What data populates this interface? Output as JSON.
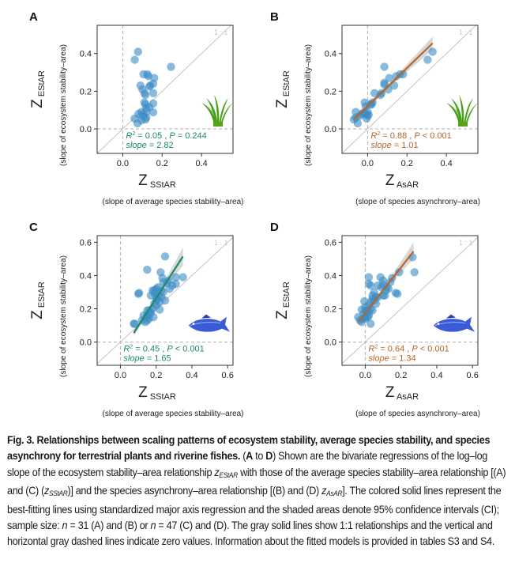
{
  "figure": {
    "number": "Fig. 3.",
    "caption_title": "Relationships between scaling patterns of ecosystem stability, average species stability, and species asynchrony for terrestrial plants and riverine fishes.",
    "caption_parts": {
      "range_open": "(",
      "range_a": "A",
      "range_to": " to ",
      "range_d": "D",
      "range_close": ")",
      "t1": " Shown are the bivariate regressions of the log–log slope of the ecosystem stability–area relationship ",
      "z1": "z",
      "z1_sub": "EStAR",
      "t2": " with those of the average species stability–area relationship [(A) and (C) (",
      "z2": "z",
      "z2_sub": "SStAR",
      "t3": ")] and the species asynchrony–area relationship [(B) and (D) ",
      "z3": "z",
      "z3_sub": "AsAR",
      "t4": "]. The colored solid lines represent the best-fitting lines using standardized major axis regression and the shaded areas denote 95% confidence intervals (CI); sample size: ",
      "n1": "n",
      "t5": " = 31 (A) and (B) or ",
      "n2": "n",
      "t6": " = 47 (C) and (D). The gray solid lines show 1:1 relationships and the vertical and horizontal gray dashed lines indicate zero values. Information about the fitted models is provided in tables S3 and S4."
    }
  },
  "colors": {
    "point": "#3a8cc4",
    "green_fit": "#1a8a6a",
    "orange_fit": "#b8652a",
    "ci": "#c8c8c8",
    "frame": "#333333",
    "grid_zero": "#b0b0b0",
    "one_to_one": "#c4c4c4",
    "plant": "#4aa01a",
    "fish": "#3a5ad8"
  },
  "chart_data": [
    {
      "panel": "A",
      "type": "scatter",
      "group": "terrestrial plants",
      "icon": "grass-icon",
      "xlabel_main": "Z",
      "xlabel_sub": "SStAR",
      "xlabel_desc": "(slope of average species stability–area)",
      "ylabel_main": "Z",
      "ylabel_sub": "EStAR",
      "ylabel_desc": "(slope of ecosystem stability–area)",
      "xlim": [
        -0.13,
        0.56
      ],
      "ylim": [
        -0.13,
        0.55
      ],
      "xticks": [
        "0.0",
        "0.2",
        "0.4"
      ],
      "xtick_values": [
        0,
        0.2,
        0.4
      ],
      "yticks": [
        "0.0",
        "0.2",
        "0.4"
      ],
      "ytick_values": [
        0,
        0.2,
        0.4
      ],
      "one_to_one_label": "1 : 1",
      "stats_line1": {
        "r2_label": "R",
        "r2_sup": "2",
        "r2_value": " = 0.05 , ",
        "p_label": "P",
        "p_value": " = 0.244"
      },
      "stats_line2": {
        "slope_label": "slope",
        "slope_value": " = 2.82"
      },
      "fit": null,
      "fit_color": "green",
      "points": [
        [
          0.078,
          0.41
        ],
        [
          0.061,
          0.367
        ],
        [
          0.245,
          0.33
        ],
        [
          0.105,
          0.29
        ],
        [
          0.125,
          0.29
        ],
        [
          0.13,
          0.28
        ],
        [
          0.16,
          0.27
        ],
        [
          0.155,
          0.24
        ],
        [
          0.14,
          0.23
        ],
        [
          0.09,
          0.23
        ],
        [
          0.1,
          0.21
        ],
        [
          0.135,
          0.225
        ],
        [
          0.11,
          0.19
        ],
        [
          0.155,
          0.19
        ],
        [
          0.115,
          0.18
        ],
        [
          0.11,
          0.14
        ],
        [
          0.115,
          0.13
        ],
        [
          0.155,
          0.135
        ],
        [
          0.12,
          0.11
        ],
        [
          0.135,
          0.115
        ],
        [
          0.095,
          0.09
        ],
        [
          0.12,
          0.09
        ],
        [
          0.155,
          0.088
        ],
        [
          0.08,
          0.08
        ],
        [
          0.105,
          0.075
        ],
        [
          0.1,
          0.07
        ],
        [
          0.06,
          0.055
        ],
        [
          0.115,
          0.05
        ],
        [
          0.095,
          0.045
        ],
        [
          0.075,
          0.03
        ],
        [
          0.12,
          0.06
        ]
      ]
    },
    {
      "panel": "B",
      "type": "scatter",
      "group": "terrestrial plants",
      "icon": "grass-icon",
      "xlabel_main": "Z",
      "xlabel_sub": "AsAR",
      "xlabel_desc": "(slope of species asynchrony–area)",
      "ylabel_main": "Z",
      "ylabel_sub": "EStAR",
      "ylabel_desc": "(slope of ecosystem stability–area)",
      "xlim": [
        -0.13,
        0.56
      ],
      "ylim": [
        -0.13,
        0.55
      ],
      "xticks": [
        "0.0",
        "0.2",
        "0.4"
      ],
      "xtick_values": [
        0,
        0.2,
        0.4
      ],
      "yticks": [
        "0.0",
        "0.2",
        "0.4"
      ],
      "ytick_values": [
        0,
        0.2,
        0.4
      ],
      "one_to_one_label": "1 : 1",
      "stats_line1": {
        "r2_label": "R",
        "r2_sup": "2",
        "r2_value": " = 0.88 , ",
        "p_label": "P",
        "p_value": " < 0.001"
      },
      "stats_line2": {
        "slope_label": "slope",
        "slope_value": " = 1.01"
      },
      "fit": {
        "x0": -0.07,
        "y0": 0.05,
        "x1": 0.33,
        "y1": 0.455,
        "ci_low_end": 0.42,
        "ci_high_end": 0.49
      },
      "fit_color": "orange",
      "points": [
        [
          0.33,
          0.41
        ],
        [
          0.305,
          0.367
        ],
        [
          0.085,
          0.33
        ],
        [
          0.18,
          0.29
        ],
        [
          0.165,
          0.29
        ],
        [
          0.145,
          0.28
        ],
        [
          0.11,
          0.27
        ],
        [
          0.085,
          0.245
        ],
        [
          0.085,
          0.235
        ],
        [
          0.135,
          0.23
        ],
        [
          0.105,
          0.21
        ],
        [
          0.07,
          0.19
        ],
        [
          0.035,
          0.19
        ],
        [
          0.065,
          0.18
        ],
        [
          0.025,
          0.14
        ],
        [
          0.02,
          0.13
        ],
        [
          -0.015,
          0.14
        ],
        [
          -0.01,
          0.12
        ],
        [
          0.0,
          0.09
        ],
        [
          -0.01,
          0.08
        ],
        [
          -0.06,
          0.09
        ],
        [
          -0.02,
          0.085
        ],
        [
          0.0,
          0.07
        ],
        [
          -0.07,
          0.05
        ],
        [
          -0.05,
          0.03
        ],
        [
          -0.005,
          0.055
        ],
        [
          -0.03,
          0.08
        ],
        [
          0.015,
          0.13
        ],
        [
          -0.04,
          0.07
        ],
        [
          0.005,
          0.075
        ],
        [
          -0.06,
          0.06
        ]
      ]
    },
    {
      "panel": "C",
      "type": "scatter",
      "group": "riverine fishes",
      "icon": "fish-icon",
      "xlabel_main": "Z",
      "xlabel_sub": "SStAR",
      "xlabel_desc": "(slope of average species stability–area)",
      "ylabel_main": "Z",
      "ylabel_sub": "EStAR",
      "ylabel_desc": "(slope of ecosystem stability–area)",
      "xlim": [
        -0.13,
        0.63
      ],
      "ylim": [
        -0.14,
        0.64
      ],
      "xticks": [
        "0.0",
        "0.2",
        "0.4",
        "0.6"
      ],
      "xtick_values": [
        0,
        0.2,
        0.4,
        0.6
      ],
      "yticks": [
        "0.0",
        "0.2",
        "0.4",
        "0.6"
      ],
      "ytick_values": [
        0,
        0.2,
        0.4,
        0.6
      ],
      "one_to_one_label": "1 : 1",
      "stats_line1": {
        "r2_label": "R",
        "r2_sup": "2",
        "r2_value": " = 0.45 , ",
        "p_label": "P",
        "p_value": " < 0.001"
      },
      "stats_line2": {
        "slope_label": "slope",
        "slope_value": " = 1.65"
      },
      "fit": {
        "x0": 0.075,
        "y0": 0.055,
        "x1": 0.35,
        "y1": 0.515,
        "ci_low_end": 0.46,
        "ci_high_end": 0.57
      },
      "fit_color": "green",
      "points": [
        [
          0.25,
          0.515
        ],
        [
          0.15,
          0.435
        ],
        [
          0.225,
          0.42
        ],
        [
          0.35,
          0.39
        ],
        [
          0.31,
          0.39
        ],
        [
          0.235,
          0.385
        ],
        [
          0.24,
          0.36
        ],
        [
          0.26,
          0.355
        ],
        [
          0.31,
          0.35
        ],
        [
          0.29,
          0.34
        ],
        [
          0.21,
          0.33
        ],
        [
          0.2,
          0.32
        ],
        [
          0.275,
          0.32
        ],
        [
          0.19,
          0.31
        ],
        [
          0.105,
          0.295
        ],
        [
          0.1,
          0.29
        ],
        [
          0.19,
          0.295
        ],
        [
          0.24,
          0.3
        ],
        [
          0.17,
          0.28
        ],
        [
          0.2,
          0.27
        ],
        [
          0.23,
          0.27
        ],
        [
          0.21,
          0.26
        ],
        [
          0.22,
          0.24
        ],
        [
          0.25,
          0.25
        ],
        [
          0.2,
          0.22
        ],
        [
          0.18,
          0.2
        ],
        [
          0.22,
          0.195
        ],
        [
          0.15,
          0.19
        ],
        [
          0.165,
          0.17
        ],
        [
          0.17,
          0.18
        ],
        [
          0.15,
          0.16
        ],
        [
          0.145,
          0.15
        ],
        [
          0.16,
          0.14
        ],
        [
          0.15,
          0.13
        ],
        [
          0.14,
          0.12
        ],
        [
          0.185,
          0.15
        ],
        [
          0.08,
          0.11
        ],
        [
          0.075,
          0.11
        ],
        [
          0.12,
          0.13
        ],
        [
          0.13,
          0.16
        ],
        [
          0.2,
          0.25
        ],
        [
          0.215,
          0.28
        ],
        [
          0.27,
          0.37
        ],
        [
          0.18,
          0.31
        ],
        [
          0.23,
          0.31
        ],
        [
          0.16,
          0.19
        ],
        [
          0.19,
          0.23
        ]
      ]
    },
    {
      "panel": "D",
      "type": "scatter",
      "group": "riverine fishes",
      "icon": "fish-icon",
      "xlabel_main": "Z",
      "xlabel_sub": "AsAR",
      "xlabel_desc": "(slope of species asynchrony–area)",
      "ylabel_main": "Z",
      "ylabel_sub": "EStAR",
      "ylabel_desc": "(slope of ecosystem stability–area)",
      "xlim": [
        -0.13,
        0.63
      ],
      "ylim": [
        -0.14,
        0.64
      ],
      "xticks": [
        "0.0",
        "0.2",
        "0.4",
        "0.6"
      ],
      "xtick_values": [
        0,
        0.2,
        0.4,
        0.6
      ],
      "yticks": [
        "0.0",
        "0.2",
        "0.4",
        "0.6"
      ],
      "ytick_values": [
        0,
        0.2,
        0.4,
        0.6
      ],
      "one_to_one_label": "1 : 1",
      "stats_line1": {
        "r2_label": "R",
        "r2_sup": "2",
        "r2_value": " = 0.64 , ",
        "p_label": "P",
        "p_value": " < 0.001"
      },
      "stats_line2": {
        "slope_label": "slope",
        "slope_value": " = 1.34"
      },
      "fit": {
        "x0": -0.04,
        "y0": 0.12,
        "x1": 0.27,
        "y1": 0.545,
        "ci_low_end": 0.5,
        "ci_high_end": 0.6
      },
      "fit_color": "orange",
      "points": [
        [
          0.265,
          0.51
        ],
        [
          0.275,
          0.42
        ],
        [
          0.19,
          0.42
        ],
        [
          0.02,
          0.39
        ],
        [
          0.085,
          0.39
        ],
        [
          0.15,
          0.385
        ],
        [
          0.1,
          0.37
        ],
        [
          0.02,
          0.35
        ],
        [
          0.03,
          0.34
        ],
        [
          0.1,
          0.345
        ],
        [
          0.12,
          0.33
        ],
        [
          0.115,
          0.31
        ],
        [
          0.17,
          0.295
        ],
        [
          0.18,
          0.29
        ],
        [
          0.1,
          0.28
        ],
        [
          0.13,
          0.32
        ],
        [
          0.04,
          0.28
        ],
        [
          0.07,
          0.27
        ],
        [
          0.04,
          0.26
        ],
        [
          0.03,
          0.24
        ],
        [
          -0.005,
          0.245
        ],
        [
          0.05,
          0.25
        ],
        [
          0.02,
          0.22
        ],
        [
          0.0,
          0.21
        ],
        [
          0.04,
          0.19
        ],
        [
          0.01,
          0.19
        ],
        [
          -0.02,
          0.195
        ],
        [
          0.02,
          0.18
        ],
        [
          -0.01,
          0.17
        ],
        [
          0.02,
          0.16
        ],
        [
          -0.04,
          0.15
        ],
        [
          -0.03,
          0.13
        ],
        [
          0.0,
          0.15
        ],
        [
          0.03,
          0.11
        ],
        [
          -0.02,
          0.12
        ],
        [
          0.0,
          0.14
        ],
        [
          0.06,
          0.27
        ],
        [
          0.09,
          0.33
        ],
        [
          0.06,
          0.23
        ],
        [
          0.03,
          0.2
        ],
        [
          0.015,
          0.15
        ],
        [
          -0.015,
          0.14
        ],
        [
          0.05,
          0.3
        ],
        [
          0.07,
          0.34
        ],
        [
          0.14,
          0.36
        ],
        [
          0.11,
          0.28
        ],
        [
          0.0,
          0.19
        ]
      ]
    }
  ]
}
